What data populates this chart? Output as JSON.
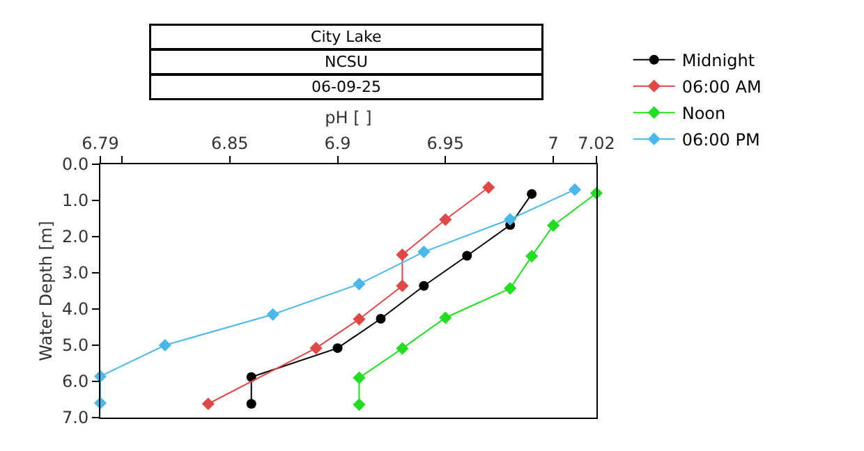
{
  "chart_data": {
    "type": "line",
    "title": "City Lake",
    "subtitle": "NCSU",
    "annotations": [
      "06-09-25"
    ],
    "xlabel": "pH [ ]",
    "ylabel": "Water Depth [m]",
    "xlim": [
      6.79,
      7.02
    ],
    "xticks": [
      6.79,
      {
        "value": 6.8,
        "label": null
      },
      6.85,
      6.9,
      6.95,
      7,
      7.02
    ],
    "ylim": [
      7,
      0
    ],
    "yticks": [
      {
        "value": 0,
        "label": "0.0"
      },
      {
        "value": 1,
        "label": "1.0"
      },
      {
        "value": 2,
        "label": "2.0"
      },
      {
        "value": 3,
        "label": "3.0"
      },
      {
        "value": 4,
        "label": "4.0"
      },
      {
        "value": 5,
        "label": "5.0"
      },
      {
        "value": 6,
        "label": "6.0"
      },
      {
        "value": 7,
        "label": "7.0"
      }
    ],
    "legend": "top right",
    "line_style": "solid",
    "series": [
      {
        "name": "Midnight",
        "color": "#000000",
        "marker": "circle",
        "x": [
          6.99,
          6.98,
          6.96,
          6.94,
          6.92,
          6.9,
          6.86,
          6.86
        ],
        "values": [
          0.82,
          1.68,
          2.53,
          3.36,
          4.27,
          5.08,
          5.88,
          6.62
        ]
      },
      {
        "name": "06:00 AM",
        "color": "#e04848",
        "marker": "diamond",
        "x": [
          6.97,
          6.95,
          6.93,
          6.93,
          6.91,
          6.89,
          6.84
        ],
        "values": [
          0.64,
          1.53,
          2.5,
          3.36,
          4.28,
          5.08,
          6.62
        ]
      },
      {
        "name": "Noon",
        "color": "#22dd22",
        "marker": "diamond",
        "x": [
          7.02,
          7.0,
          6.99,
          6.98,
          6.95,
          6.93,
          6.91,
          6.91
        ],
        "values": [
          0.8,
          1.69,
          2.54,
          3.43,
          4.24,
          5.09,
          5.9,
          6.64
        ]
      },
      {
        "name": "06:00 PM",
        "color": "#4ab8e8",
        "marker": "diamond",
        "x": [
          7.01,
          6.98,
          6.94,
          6.91,
          6.87,
          6.82,
          6.79,
          6.79
        ],
        "values": [
          0.7,
          1.52,
          2.42,
          3.31,
          4.15,
          5.0,
          5.86,
          6.6
        ]
      }
    ]
  }
}
